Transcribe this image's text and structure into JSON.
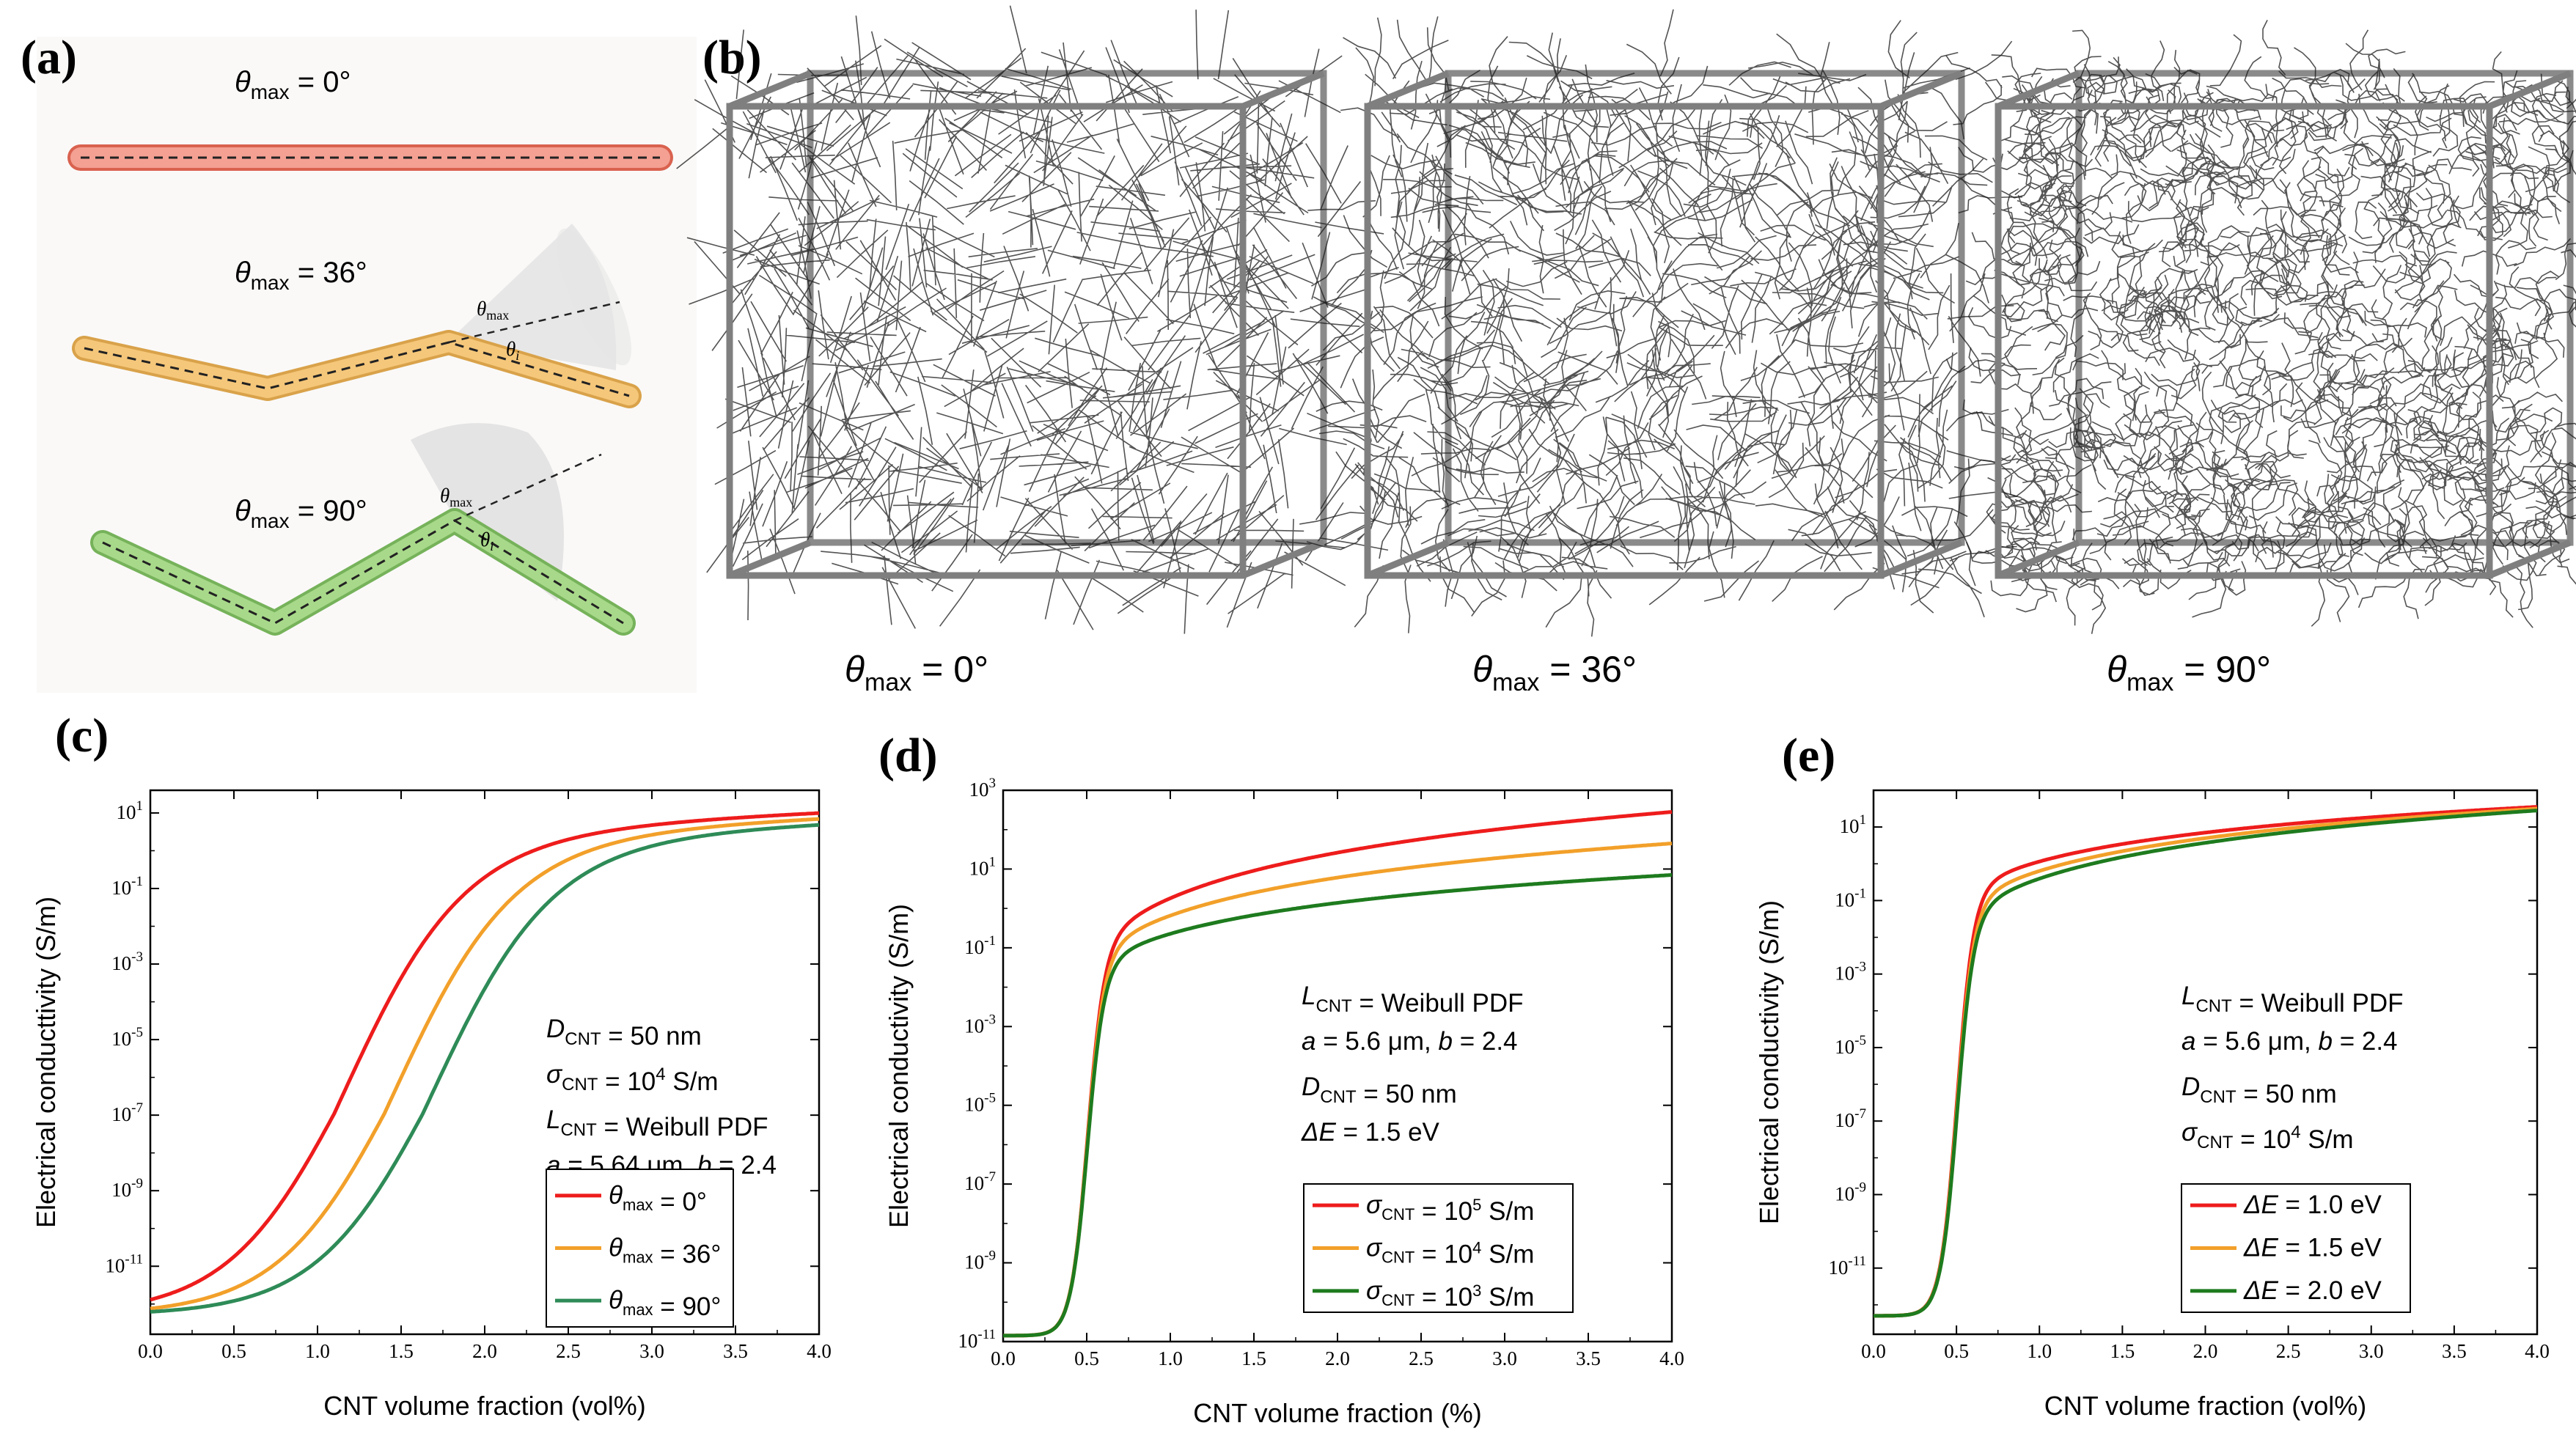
{
  "panels": {
    "a": {
      "label": "(a)",
      "schemes": [
        {
          "prefix": "θ",
          "sub": "max",
          "eq": " = 0°",
          "color": "#f08a7a",
          "edge": "#d9624f"
        },
        {
          "prefix": "θ",
          "sub": "max",
          "eq": " = 36°",
          "color": "#f5c77a",
          "edge": "#d9a24a"
        },
        {
          "prefix": "θ",
          "sub": "max",
          "eq": " = 90°",
          "color": "#a8d98a",
          "edge": "#76b25a"
        }
      ],
      "cone_labels": {
        "theta": "θ",
        "max": "max",
        "i": "i"
      }
    },
    "b": {
      "label": "(b)",
      "boxes": [
        {
          "prefix": "θ",
          "sub": "max",
          "eq": " = 0°"
        },
        {
          "prefix": "θ",
          "sub": "max",
          "eq": " = 36°"
        },
        {
          "prefix": "θ",
          "sub": "max",
          "eq": " = 90°"
        }
      ]
    },
    "c": {
      "label": "(c)"
    },
    "d": {
      "label": "(d)"
    },
    "e": {
      "label": "(e)"
    }
  },
  "chart_data": [
    {
      "id": "c",
      "type": "line",
      "xlabel": "CNT volume fraction (vol%)",
      "ylabel": "Electrical conducttivity (S/m)",
      "xlim": [
        0,
        4.0
      ],
      "x_ticks": [
        "0.0",
        "0.5",
        "1.0",
        "1.5",
        "2.0",
        "2.5",
        "3.0",
        "3.5",
        "4.0"
      ],
      "ylim_log10": [
        -12.8,
        1.6
      ],
      "y_ticks": [
        {
          "base": "10",
          "exp": "1",
          "v": 1
        },
        {
          "base": "10",
          "exp": "-1",
          "v": -1
        },
        {
          "base": "10",
          "exp": "-3",
          "v": -3
        },
        {
          "base": "10",
          "exp": "-5",
          "v": -5
        },
        {
          "base": "10",
          "exp": "-7",
          "v": -7
        },
        {
          "base": "10",
          "exp": "-9",
          "v": -9
        },
        {
          "base": "10",
          "exp": "-11",
          "v": -11
        }
      ],
      "annotations": [
        {
          "main": "D",
          "sub": "CNT",
          "rest": " = 50 nm",
          "italic": true
        },
        {
          "main": "σ",
          "sub": "CNT",
          "rest": " = 10",
          "sup": "4",
          "tail": " S/m",
          "italic": true
        },
        {
          "main": "L",
          "sub": "CNT",
          "rest": " = Weibull PDF",
          "italic": true
        },
        {
          "main": "a",
          "rest": " = 5.64 μm, ",
          "main2": "b",
          "rest2": " = 2.4",
          "italic": true
        }
      ],
      "series": [
        {
          "name": "θmax = 0°",
          "legend": {
            "main": "θ",
            "sub": "max",
            "rest": " = 0°"
          },
          "color": "#ee1c1c",
          "threshold": 1.15,
          "slope": 0.35,
          "floor": -12.3,
          "knee": -0.8,
          "k": 0.82,
          "end": 1.0
        },
        {
          "name": "θmax = 36°",
          "legend": {
            "main": "θ",
            "sub": "max",
            "rest": " = 36°"
          },
          "color": "#f2a02a",
          "threshold": 1.45,
          "slope": 0.35,
          "floor": -12.3,
          "knee": -0.8,
          "k": 0.82,
          "end": 0.85
        },
        {
          "name": "θmax = 90°",
          "legend": {
            "main": "θ",
            "sub": "max",
            "rest": " = 90°"
          },
          "color": "#2e8b57",
          "threshold": 1.68,
          "slope": 0.35,
          "floor": -12.3,
          "knee": -0.8,
          "k": 0.82,
          "end": 0.7
        }
      ]
    },
    {
      "id": "d",
      "type": "line",
      "xlabel": "CNT volume fraction (%)",
      "ylabel": "Electrical conductivity (S/m)",
      "xlim": [
        0,
        4.0
      ],
      "x_ticks": [
        "0.0",
        "0.5",
        "1.0",
        "1.5",
        "2.0",
        "2.5",
        "3.0",
        "3.5",
        "4.0"
      ],
      "ylim_log10": [
        -11,
        3
      ],
      "y_ticks": [
        {
          "base": "10",
          "exp": "3",
          "v": 3
        },
        {
          "base": "10",
          "exp": "1",
          "v": 1
        },
        {
          "base": "10",
          "exp": "-1",
          "v": -1
        },
        {
          "base": "10",
          "exp": "-3",
          "v": -3
        },
        {
          "base": "10",
          "exp": "-5",
          "v": -5
        },
        {
          "base": "10",
          "exp": "-7",
          "v": -7
        },
        {
          "base": "10",
          "exp": "-9",
          "v": -9
        },
        {
          "base": "10",
          "exp": "-11",
          "v": -11
        }
      ],
      "annotations": [
        {
          "main": "L",
          "sub": "CNT",
          "rest": " = Weibull PDF",
          "italic": true
        },
        {
          "main": "a",
          "rest": " = 5.6 μm,  ",
          "main2": "b",
          "rest2": " = 2.4",
          "italic": true
        },
        {
          "main": "D",
          "sub": "CNT",
          "rest": " = 50 nm",
          "italic": true
        },
        {
          "main": "ΔE",
          "rest": " = 1.5 eV",
          "italic": true
        }
      ],
      "series": [
        {
          "name": "σCNT = 10^5 S/m",
          "legend": {
            "main": "σ",
            "sub": "CNT",
            "rest": " = 10",
            "sup": "5",
            "tail": " S/m"
          },
          "color": "#ee1c1c",
          "threshold": 0.5,
          "slope": 0.05,
          "floor": -10.85,
          "knee": -1.6,
          "k": 0.9,
          "end": 2.45
        },
        {
          "name": "σCNT = 10^4 S/m",
          "legend": {
            "main": "σ",
            "sub": "CNT",
            "rest": " = 10",
            "sup": "4",
            "tail": " S/m"
          },
          "color": "#f2a02a",
          "threshold": 0.5,
          "slope": 0.05,
          "floor": -10.85,
          "knee": -1.7,
          "k": 0.85,
          "end": 1.65
        },
        {
          "name": "σCNT = 10^3 S/m",
          "legend": {
            "main": "σ",
            "sub": "CNT",
            "rest": " = 10",
            "sup": "3",
            "tail": " S/m"
          },
          "color": "#1e7b1e",
          "threshold": 0.5,
          "slope": 0.05,
          "floor": -10.85,
          "knee": -1.85,
          "k": 0.8,
          "end": 0.85
        }
      ]
    },
    {
      "id": "e",
      "type": "line",
      "xlabel": "CNT volume fraction (vol%)",
      "ylabel": "Electrical conductivity (S/m)",
      "xlim": [
        0,
        4.0
      ],
      "x_ticks": [
        "0.0",
        "0.5",
        "1.0",
        "1.5",
        "2.0",
        "2.5",
        "3.0",
        "3.5",
        "4.0"
      ],
      "ylim_log10": [
        -12.8,
        2
      ],
      "y_ticks": [
        {
          "base": "10",
          "exp": "1",
          "v": 1
        },
        {
          "base": "10",
          "exp": "-1",
          "v": -1
        },
        {
          "base": "10",
          "exp": "-3",
          "v": -3
        },
        {
          "base": "10",
          "exp": "-5",
          "v": -5
        },
        {
          "base": "10",
          "exp": "-7",
          "v": -7
        },
        {
          "base": "10",
          "exp": "-9",
          "v": -9
        },
        {
          "base": "10",
          "exp": "-11",
          "v": -11
        }
      ],
      "annotations": [
        {
          "main": "L",
          "sub": "CNT",
          "rest": " = Weibull PDF",
          "italic": true
        },
        {
          "main": "a",
          "rest": " = 5.6 μm,  ",
          "main2": "b",
          "rest2": " = 2.4",
          "italic": true
        },
        {
          "main": "D",
          "sub": "CNT",
          "rest": " = 50 nm",
          "italic": true
        },
        {
          "main": "σ",
          "sub": "CNT",
          "rest": " = 10",
          "sup": "4",
          "tail": " S/m",
          "italic": true
        }
      ],
      "series": [
        {
          "name": "ΔE = 1.0 eV",
          "legend": {
            "main": "ΔE",
            "rest": " = 1.0 eV"
          },
          "color": "#ee1c1c",
          "threshold": 0.5,
          "slope": 0.05,
          "floor": -12.3,
          "knee": -1.2,
          "k": 0.9,
          "end": 1.55
        },
        {
          "name": "ΔE = 1.5 eV",
          "legend": {
            "main": "ΔE",
            "rest": " = 1.5 eV"
          },
          "color": "#f2a02a",
          "threshold": 0.5,
          "slope": 0.05,
          "floor": -12.3,
          "knee": -1.6,
          "k": 0.85,
          "end": 1.5
        },
        {
          "name": "ΔE = 2.0 eV",
          "legend": {
            "main": "ΔE",
            "rest": " = 2.0 eV"
          },
          "color": "#1e7b1e",
          "threshold": 0.5,
          "slope": 0.05,
          "floor": -12.3,
          "knee": -1.9,
          "k": 0.8,
          "end": 1.45
        }
      ]
    }
  ]
}
